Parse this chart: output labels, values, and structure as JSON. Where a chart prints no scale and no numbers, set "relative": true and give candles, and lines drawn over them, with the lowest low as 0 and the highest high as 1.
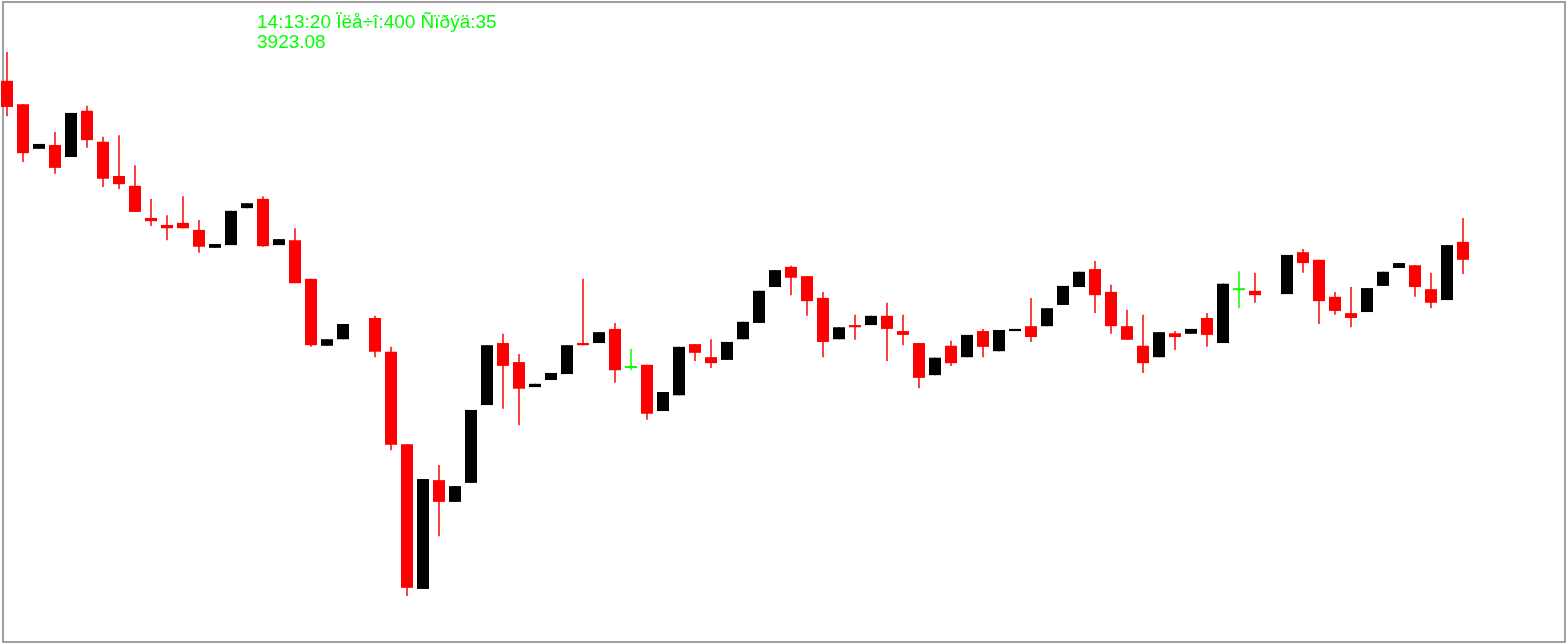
{
  "chart_data": {
    "type": "candlestick",
    "relative": true,
    "annotations": [
      "14:13:20 Ïëå÷î:400 Ñïðýä:35",
      "3923.08"
    ],
    "categories": [
      null,
      null,
      null,
      null,
      null,
      null,
      null,
      null,
      null,
      null,
      null,
      null,
      null,
      null,
      null,
      null,
      null,
      null,
      null,
      null,
      null,
      null,
      null,
      null,
      null,
      null,
      null,
      null,
      null,
      null,
      null,
      null,
      null,
      null,
      null,
      null,
      null,
      null,
      null,
      null,
      null,
      null,
      null,
      null,
      null,
      null,
      null,
      null,
      null,
      null,
      null,
      null,
      null,
      null,
      null,
      null,
      null,
      null,
      null,
      null,
      null,
      null,
      null,
      null,
      null,
      null,
      null,
      null,
      null,
      null,
      null,
      null,
      null,
      null,
      null,
      null,
      null,
      null,
      null,
      null,
      null,
      null,
      null,
      null,
      null,
      null,
      null,
      null,
      null,
      null,
      null,
      null
    ],
    "ohlc": [
      [
        0.947,
        1,
        0.882,
        0.899
      ],
      [
        0.904,
        0.904,
        0.798,
        0.814
      ],
      [
        0.822,
        0.831,
        0.822,
        0.831
      ],
      [
        0.829,
        0.853,
        0.776,
        0.787
      ],
      [
        0.807,
        0.888,
        0.807,
        0.888
      ],
      [
        0.892,
        0.901,
        0.824,
        0.838
      ],
      [
        0.835,
        0.844,
        0.752,
        0.767
      ],
      [
        0.772,
        0.847,
        0.748,
        0.757
      ],
      [
        0.754,
        0.792,
        0.706,
        0.706
      ],
      [
        0.695,
        0.73,
        0.68,
        0.689
      ],
      [
        0.682,
        0.7,
        0.654,
        0.676
      ],
      [
        0.686,
        0.735,
        0.676,
        0.676
      ],
      [
        0.673,
        0.691,
        0.631,
        0.642
      ],
      [
        0.64,
        0.647,
        0.64,
        0.647
      ],
      [
        0.645,
        0.708,
        0.645,
        0.708
      ],
      [
        0.713,
        0.722,
        0.713,
        0.722
      ],
      [
        0.73,
        0.735,
        0.642,
        0.643
      ],
      [
        0.645,
        0.656,
        0.645,
        0.656
      ],
      [
        0.654,
        0.676,
        0.575,
        0.575
      ],
      [
        0.583,
        0.583,
        0.458,
        0.461
      ],
      [
        0.46,
        0.472,
        0.46,
        0.472
      ],
      [
        0.472,
        0.5,
        0.472,
        0.5
      ],
      null,
      [
        0.511,
        0.515,
        0.439,
        0.449
      ],
      [
        0.449,
        0.458,
        0.268,
        0.278
      ],
      [
        0.279,
        0.279,
        0,
        0.015
      ],
      [
        0.013,
        0.215,
        0.013,
        0.215
      ],
      [
        0.213,
        0.241,
        0.11,
        0.173
      ],
      [
        0.173,
        0.202,
        0.173,
        0.202
      ],
      [
        0.208,
        0.342,
        0.208,
        0.342
      ],
      [
        0.351,
        0.461,
        0.351,
        0.461
      ],
      [
        0.465,
        0.482,
        0.344,
        0.423
      ],
      [
        0.43,
        0.445,
        0.314,
        0.381
      ],
      [
        0.384,
        0.39,
        0.384,
        0.39
      ],
      [
        0.397,
        0.41,
        0.397,
        0.41
      ],
      [
        0.408,
        0.461,
        0.408,
        0.461
      ],
      [
        0.465,
        0.583,
        0.461,
        0.461
      ],
      [
        0.465,
        0.485,
        0.465,
        0.485
      ],
      [
        0.491,
        0.502,
        0.392,
        0.415
      ],
      [
        0.421,
        0.454,
        0.415,
        0.421
      ],
      [
        0.425,
        0.425,
        0.324,
        0.335
      ],
      [
        0.34,
        0.375,
        0.34,
        0.375
      ],
      [
        0.369,
        0.458,
        0.369,
        0.458
      ],
      [
        0.463,
        0.463,
        0.432,
        0.447
      ],
      [
        0.439,
        0.472,
        0.419,
        0.428
      ],
      [
        0.434,
        0.467,
        0.434,
        0.467
      ],
      [
        0.472,
        0.504,
        0.472,
        0.504
      ],
      [
        0.502,
        0.561,
        0.502,
        0.561
      ],
      [
        0.568,
        0.599,
        0.568,
        0.599
      ],
      [
        0.605,
        0.607,
        0.553,
        0.585
      ],
      [
        0.588,
        0.588,
        0.515,
        0.542
      ],
      [
        0.548,
        0.559,
        0.439,
        0.467
      ],
      [
        0.472,
        0.494,
        0.472,
        0.494
      ],
      [
        0.498,
        0.517,
        0.471,
        0.494
      ],
      [
        0.498,
        0.515,
        0.498,
        0.515
      ],
      [
        0.515,
        0.539,
        0.432,
        0.491
      ],
      [
        0.487,
        0.517,
        0.461,
        0.48
      ],
      [
        0.465,
        0.465,
        0.382,
        0.401
      ],
      [
        0.406,
        0.438,
        0.406,
        0.438
      ],
      [
        0.46,
        0.469,
        0.423,
        0.428
      ],
      [
        0.439,
        0.48,
        0.439,
        0.48
      ],
      [
        0.487,
        0.491,
        0.439,
        0.458
      ],
      [
        0.45,
        0.489,
        0.45,
        0.489
      ],
      [
        0.487,
        0.491,
        0.487,
        0.491
      ],
      [
        0.496,
        0.548,
        0.467,
        0.476
      ],
      [
        0.496,
        0.529,
        0.496,
        0.529
      ],
      [
        0.535,
        0.57,
        0.535,
        0.57
      ],
      [
        0.568,
        0.596,
        0.568,
        0.596
      ],
      [
        0.601,
        0.616,
        0.52,
        0.553
      ],
      [
        0.559,
        0.572,
        0.482,
        0.496
      ],
      [
        0.496,
        0.526,
        0.471,
        0.471
      ],
      [
        0.46,
        0.517,
        0.41,
        0.428
      ],
      [
        0.439,
        0.485,
        0.439,
        0.485
      ],
      [
        0.483,
        0.487,
        0.452,
        0.476
      ],
      [
        0.482,
        0.491,
        0.482,
        0.491
      ],
      [
        0.511,
        0.52,
        0.458,
        0.48
      ],
      [
        0.465,
        0.574,
        0.465,
        0.574
      ],
      [
        0.564,
        0.597,
        0.529,
        0.564
      ],
      [
        0.561,
        0.594,
        0.539,
        0.553
      ],
      null,
      [
        0.555,
        0.627,
        0.555,
        0.627
      ],
      [
        0.632,
        0.638,
        0.594,
        0.612
      ],
      [
        0.618,
        0.618,
        0.5,
        0.542
      ],
      [
        0.55,
        0.559,
        0.517,
        0.524
      ],
      [
        0.52,
        0.568,
        0.494,
        0.511
      ],
      [
        0.522,
        0.566,
        0.522,
        0.566
      ],
      [
        0.57,
        0.596,
        0.57,
        0.596
      ],
      [
        0.603,
        0.612,
        0.603,
        0.612
      ],
      [
        0.608,
        0.608,
        0.55,
        0.568
      ],
      [
        0.564,
        0.594,
        0.529,
        0.539
      ],
      [
        0.544,
        0.645,
        0.544,
        0.645
      ],
      [
        0.651,
        0.695,
        0.592,
        0.618
      ]
    ],
    "colors": [
      "#ff0000",
      "#ff0000",
      "#000000",
      "#ff0000",
      "#000000",
      "#ff0000",
      "#ff0000",
      "#ff0000",
      "#ff0000",
      "#ff0000",
      "#ff0000",
      "#ff0000",
      "#ff0000",
      "#000000",
      "#000000",
      "#000000",
      "#ff0000",
      "#000000",
      "#ff0000",
      "#ff0000",
      "#000000",
      "#000000",
      null,
      "#ff0000",
      "#ff0000",
      "#ff0000",
      "#000000",
      "#ff0000",
      "#000000",
      "#000000",
      "#000000",
      "#ff0000",
      "#ff0000",
      "#000000",
      "#000000",
      "#000000",
      "#ff0000",
      "#000000",
      "#ff0000",
      "#00ff00",
      "#ff0000",
      "#000000",
      "#000000",
      "#ff0000",
      "#ff0000",
      "#000000",
      "#000000",
      "#000000",
      "#000000",
      "#ff0000",
      "#ff0000",
      "#ff0000",
      "#000000",
      "#ff0000",
      "#000000",
      "#ff0000",
      "#ff0000",
      "#ff0000",
      "#000000",
      "#ff0000",
      "#000000",
      "#ff0000",
      "#000000",
      "#000000",
      "#ff0000",
      "#000000",
      "#000000",
      "#000000",
      "#ff0000",
      "#ff0000",
      "#ff0000",
      "#ff0000",
      "#000000",
      "#ff0000",
      "#000000",
      "#ff0000",
      "#000000",
      "#00ff00",
      "#ff0000",
      null,
      "#000000",
      "#ff0000",
      "#ff0000",
      "#ff0000",
      "#ff0000",
      "#000000",
      "#000000",
      "#000000",
      "#ff0000",
      "#ff0000",
      "#000000",
      "#ff0000"
    ]
  }
}
